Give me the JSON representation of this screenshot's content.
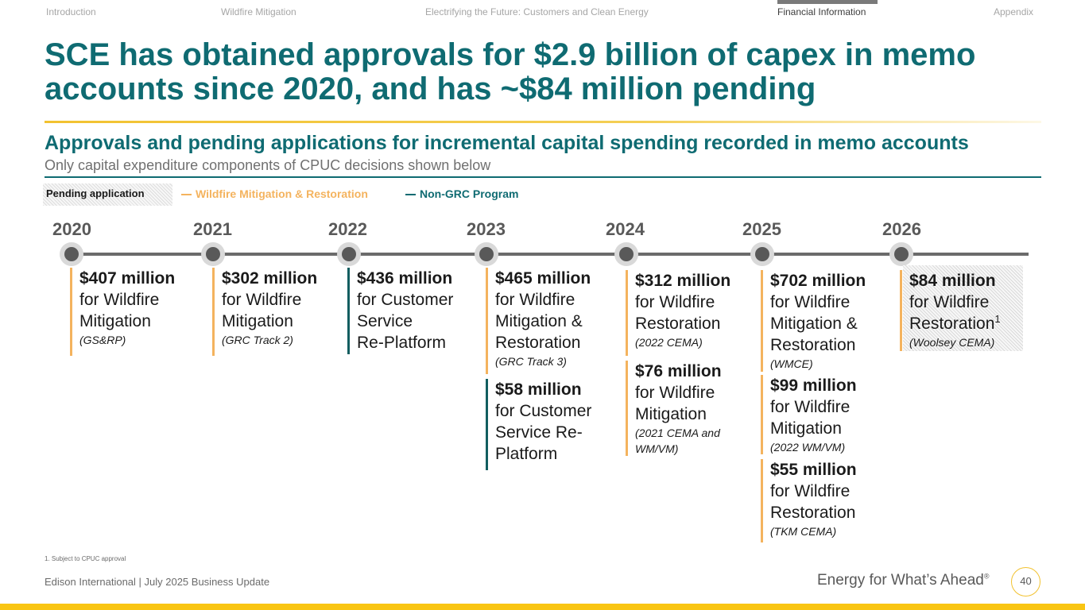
{
  "nav": {
    "items": [
      "Introduction",
      "Wildfire Mitigation",
      "Electrifying the Future: Customers and Clean Energy",
      "Financial Information",
      "Appendix"
    ],
    "active": "Financial Information"
  },
  "title": "SCE has obtained approvals for $2.9 billion of capex in memo accounts since 2020, and has ~$84 million pending",
  "subtitle": "Approvals and pending applications for incremental capital spending recorded in memo accounts",
  "subnote": "Only capital expenditure components of CPUC decisions shown below",
  "legend": {
    "pending": "Pending application",
    "wildfire": "Wildfire Mitigation & Restoration",
    "non_grc": "Non-GRC Program"
  },
  "years": [
    "2020",
    "2021",
    "2022",
    "2023",
    "2024",
    "2025",
    "2026"
  ],
  "entries": {
    "y2020": [
      {
        "amount": "$407 million",
        "desc": "for Wildfire\nMitigation",
        "note": "(GS&RP)"
      }
    ],
    "y2021": [
      {
        "amount": "$302 million",
        "desc": "for Wildfire\nMitigation",
        "note": "(GRC Track 2)"
      }
    ],
    "y2022": [
      {
        "amount": "$436 million",
        "desc": "for Customer\nService\nRe-Platform",
        "note": ""
      }
    ],
    "y2023": [
      {
        "amount": "$465 million",
        "desc": "for Wildfire\nMitigation &\nRestoration",
        "note": "(GRC Track 3)"
      },
      {
        "amount": "$58 million",
        "desc": "for Customer\nService Re-\nPlatform",
        "note": ""
      }
    ],
    "y2024": [
      {
        "amount": "$312 million",
        "desc": "for Wildfire\nRestoration",
        "note": "(2022 CEMA)"
      },
      {
        "amount": "$76 million",
        "desc": "for Wildfire\nMitigation",
        "note": "(2021 CEMA and\nWM/VM)"
      }
    ],
    "y2025": [
      {
        "amount": "$702 million",
        "desc": "for Wildfire\nMitigation &\nRestoration",
        "note": "(WMCE)"
      },
      {
        "amount": "$99 million",
        "desc": "for Wildfire\nMitigation",
        "note": "(2022 WM/VM)"
      },
      {
        "amount": "$55 million",
        "desc": "for Wildfire\nRestoration",
        "note": "(TKM CEMA)"
      }
    ],
    "y2026": [
      {
        "amount": "$84 million",
        "desc": "for Wildfire\nRestoration",
        "footnote_mark": "1",
        "note": "(Woolsey CEMA)"
      }
    ]
  },
  "footnote": "1.   Subject to CPUC approval",
  "footer": {
    "left": "Edison International |  July 2025 Business Update",
    "tagline": "Energy for What’s Ahead",
    "trademark": "®",
    "page": "40"
  },
  "colors": {
    "teal": "#0f6b72",
    "wildfire_bar": "#f4b35e",
    "non_grc_bar": "#125e60",
    "gold": "#f9c513"
  }
}
